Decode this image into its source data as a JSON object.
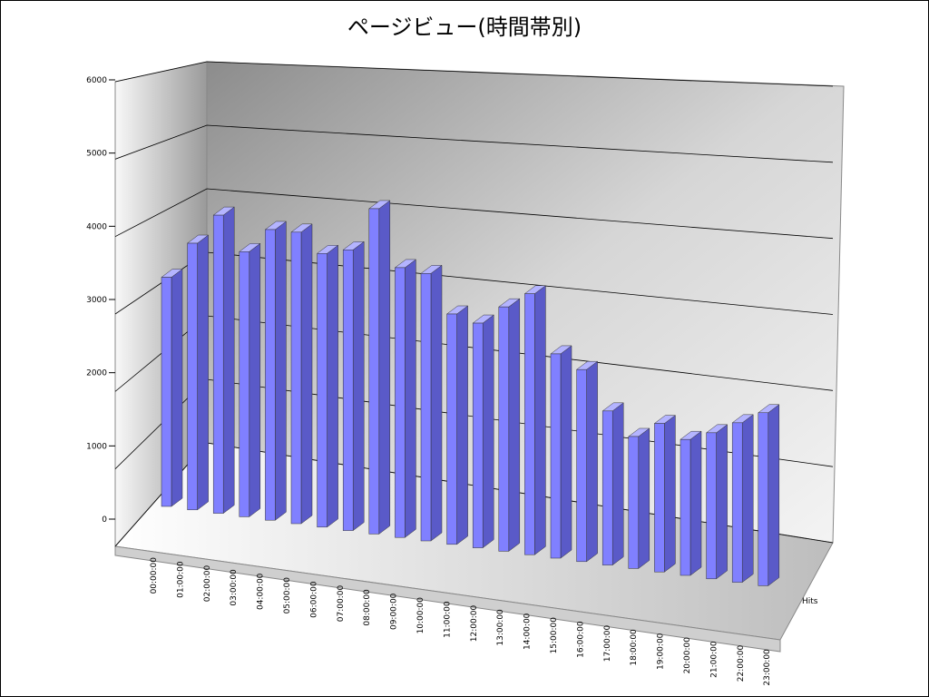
{
  "chart_data": {
    "type": "bar3d",
    "title": "ページビュー(時間帯別)",
    "categories": [
      "00:00:00",
      "01:00:00",
      "02:00:00",
      "03:00:00",
      "04:00:00",
      "05:00:00",
      "06:00:00",
      "07:00:00",
      "08:00:00",
      "09:00:00",
      "10:00:00",
      "11:00:00",
      "12:00:00",
      "13:00:00",
      "14:00:00",
      "15:00:00",
      "16:00:00",
      "17:00:00",
      "18:00:00",
      "19:00:00",
      "20:00:00",
      "21:00:00",
      "22:00:00",
      "23:00:00"
    ],
    "series": [
      {
        "name": "Hits",
        "color": "#8080ff",
        "values": [
          3750,
          4350,
          4850,
          4300,
          4700,
          4700,
          4400,
          4500,
          5200,
          4300,
          4250,
          3650,
          3550,
          3850,
          4100,
          3200,
          3000,
          2400,
          2050,
          2300,
          2100,
          2250,
          2450,
          2650
        ]
      }
    ],
    "ylim": [
      0,
      6000
    ],
    "yticks": [
      0,
      1000,
      2000,
      3000,
      4000,
      5000,
      6000
    ],
    "grid": true
  }
}
